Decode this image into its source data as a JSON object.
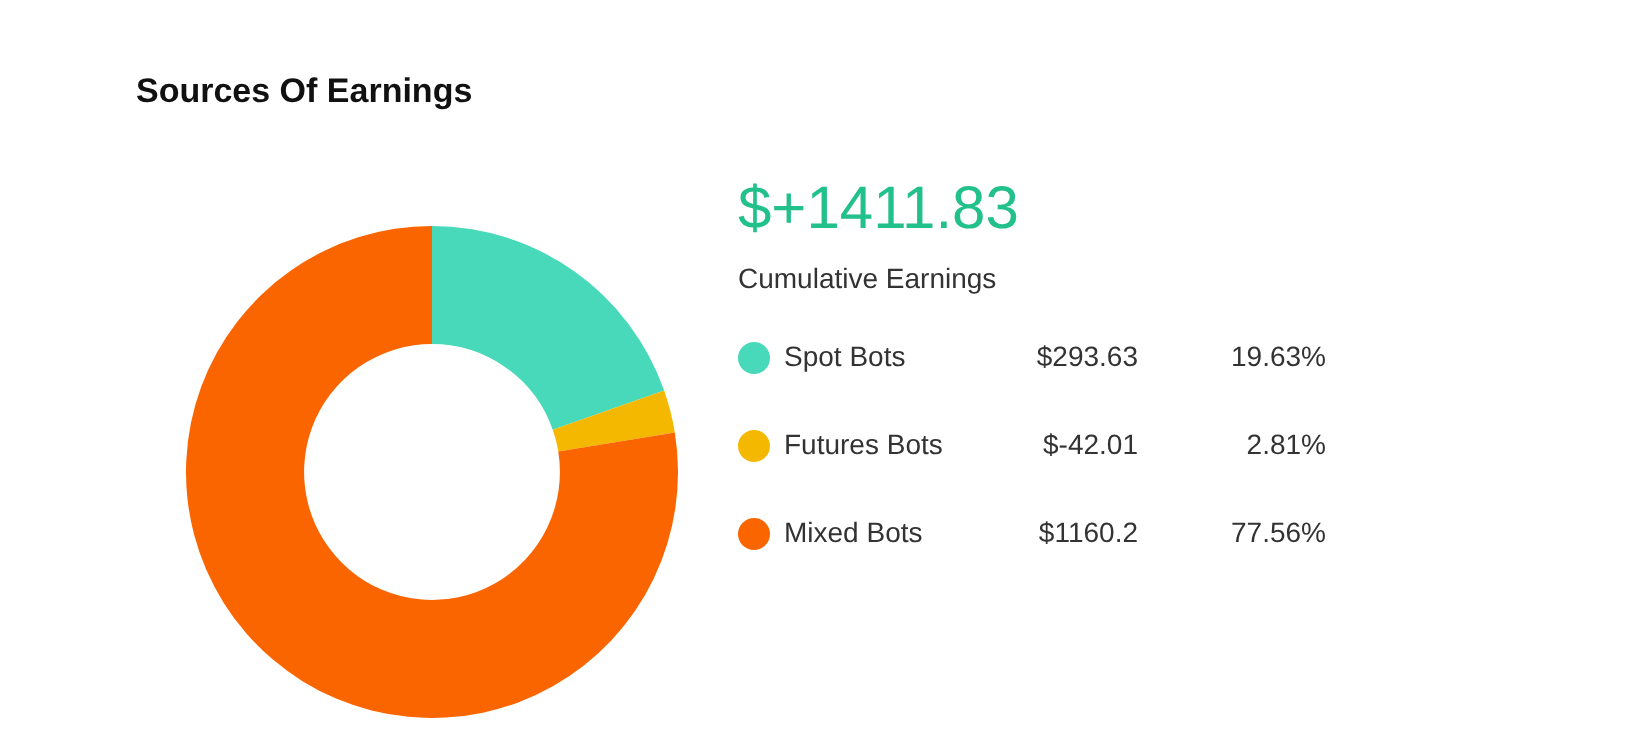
{
  "chart_data": {
    "type": "donut",
    "title": "Sources Of Earnings",
    "categories": [
      "Spot Bots",
      "Futures Bots",
      "Mixed Bots"
    ],
    "values": [
      19.63,
      2.81,
      77.56
    ],
    "value_labels": [
      "19.63%",
      "2.81%",
      "77.56%"
    ],
    "colors": [
      "#47d9b9",
      "#f5b800",
      "#fb6500"
    ],
    "legend": "right",
    "annotations": [
      "$+1411.83",
      "Cumulative Earnings",
      "$293.63",
      "$-42.01",
      "$1160.2"
    ]
  }
}
